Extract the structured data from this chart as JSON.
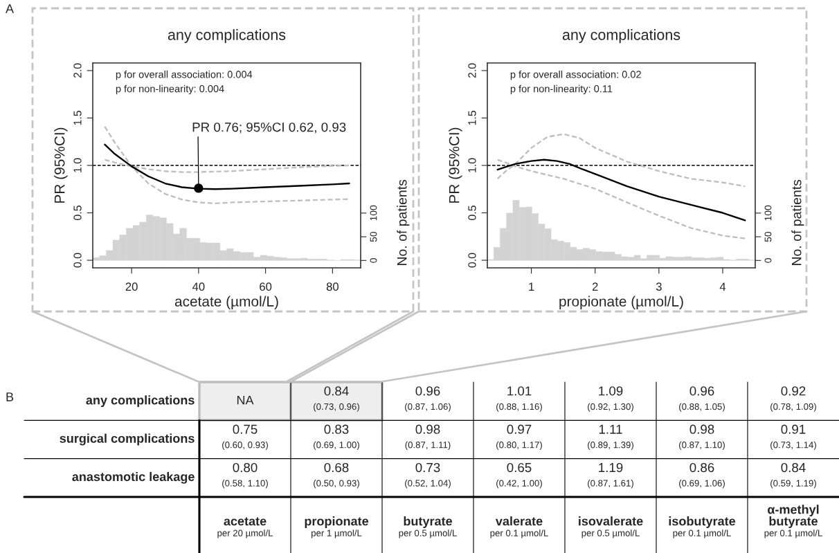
{
  "chart_data": [
    {
      "type": "line",
      "title": "any complications",
      "xlabel": "acetate (µmol/L)",
      "ylabel": "PR (95%CI)",
      "y2label": "No. of patients",
      "xlim": [
        8.4,
        88.4
      ],
      "xticks": [
        20,
        40,
        60,
        80
      ],
      "ylim": [
        -0.08,
        2.08
      ],
      "yticks": [
        {
          "value": 0,
          "label": "0.0"
        },
        {
          "value": 0.5,
          "label": "0.5"
        },
        {
          "value": 1,
          "label": "1.0"
        },
        {
          "value": 1.5,
          "label": "1.5"
        },
        {
          "value": 2,
          "label": "2.0"
        }
      ],
      "y2lim": [
        -15.6,
        416.7
      ],
      "y2ticks": [
        0,
        50,
        100
      ],
      "ref_lines": [
        {
          "axis": "y",
          "value": 1,
          "color": "#000000",
          "line_style": "dashed"
        }
      ],
      "annotations": [
        "p for overall association: 0.004",
        "p for non-linearity: 0.004",
        {
          "text": "PR 0.76; 95%CI 0.62, 0.93",
          "x": 40,
          "y": 0.76
        }
      ],
      "series": [
        {
          "type": "histogram",
          "axis": "y2",
          "color": "#d3d3d3",
          "bins": [
            8.4,
            10.4,
            12.4,
            14.4,
            16.4,
            18.4,
            20.4,
            22.4,
            24.4,
            26.4,
            28.4,
            30.4,
            32.4,
            34.4,
            36.4,
            38.4,
            40.4,
            42.4,
            44.4,
            46.4,
            48.4,
            50.4,
            52.4,
            54.4,
            56.4,
            58.4,
            60.4,
            62.4,
            64.4,
            66.4,
            68.4,
            70.4,
            72.4,
            74.4,
            76.4,
            78.4,
            80.4,
            82.4,
            84.4,
            86.4,
            88.4
          ],
          "values": [
            6,
            10,
            21,
            43,
            54,
            68,
            74,
            81,
            96,
            93,
            90,
            78,
            56,
            68,
            47,
            47,
            38,
            37,
            37,
            21,
            25,
            19,
            17,
            17,
            7,
            11,
            9,
            7,
            6,
            4,
            4,
            5,
            3,
            3,
            3,
            1,
            0,
            2,
            2,
            1
          ]
        },
        {
          "type": "line",
          "color": "#bfbfbf",
          "line_style": "dashed",
          "x": [
            12,
            15,
            20,
            25,
            30,
            35,
            40,
            45,
            50,
            60,
            70,
            80,
            85
          ],
          "values": [
            1.41,
            1.24,
            0.99,
            0.81,
            0.7,
            0.64,
            0.61,
            0.6,
            0.61,
            0.62,
            0.63,
            0.64,
            0.645
          ]
        },
        {
          "type": "line",
          "color": "#bfbfbf",
          "line_style": "dashed",
          "x": [
            12,
            15,
            20,
            25,
            30,
            35,
            40,
            50,
            60,
            70,
            80,
            85
          ],
          "values": [
            1.06,
            1.03,
            0.99,
            0.96,
            0.94,
            0.93,
            0.93,
            0.94,
            0.96,
            0.98,
            0.995,
            1.0
          ]
        },
        {
          "type": "line",
          "color": "#000000",
          "line_style": "solid",
          "x": [
            12,
            15,
            20,
            25,
            30,
            35,
            40,
            45,
            50,
            60,
            70,
            80,
            85
          ],
          "values": [
            1.22,
            1.12,
            0.99,
            0.885,
            0.81,
            0.77,
            0.755,
            0.75,
            0.755,
            0.77,
            0.785,
            0.8,
            0.81
          ]
        },
        {
          "type": "scatter",
          "color": "#000000",
          "marker": "circle",
          "x": [
            40
          ],
          "values": [
            0.76
          ]
        }
      ]
    },
    {
      "type": "line",
      "title": "any complications",
      "xlabel": "propionate (µmol/L)",
      "ylabel": "PR (95%CI)",
      "y2label": "No. of patients",
      "xlim": [
        0.31,
        4.51
      ],
      "xticks": [
        1,
        2,
        3,
        4
      ],
      "ylim": [
        -0.08,
        2.08
      ],
      "yticks": [
        {
          "value": 0,
          "label": "0.0"
        },
        {
          "value": 0.5,
          "label": "0.5"
        },
        {
          "value": 1,
          "label": "1.0"
        },
        {
          "value": 1.5,
          "label": "1.5"
        },
        {
          "value": 2,
          "label": "2.0"
        }
      ],
      "y2lim": [
        -15.6,
        416.7
      ],
      "y2ticks": [
        0,
        50,
        100
      ],
      "ref_lines": [
        {
          "axis": "y",
          "value": 1,
          "color": "#000000",
          "line_style": "dashed"
        }
      ],
      "annotations": [
        "p for overall association: 0.02",
        "p for non-linearity: 0.11"
      ],
      "series": [
        {
          "type": "histogram",
          "axis": "y2",
          "color": "#d3d3d3",
          "bins": [
            0.31,
            0.41,
            0.51,
            0.61,
            0.71,
            0.81,
            0.91,
            1.01,
            1.11,
            1.21,
            1.31,
            1.41,
            1.51,
            1.61,
            1.71,
            1.81,
            1.91,
            2.01,
            2.11,
            2.21,
            2.31,
            2.41,
            2.51,
            2.61,
            2.71,
            2.81,
            2.91,
            3.01,
            3.11,
            3.21,
            3.31,
            3.41,
            3.51,
            3.61,
            3.71,
            3.81,
            3.91,
            4.01,
            4.11,
            4.21,
            4.31,
            4.41,
            4.51
          ],
          "values": [
            2,
            28,
            68,
            100,
            127,
            112,
            113,
            99,
            77,
            67,
            44,
            41,
            38,
            28,
            23,
            26,
            23,
            19,
            18,
            18,
            13,
            8,
            7,
            11,
            4,
            11,
            11,
            5,
            8,
            7,
            7,
            8,
            6,
            6,
            5,
            6,
            7,
            2,
            1,
            3,
            3,
            1
          ]
        },
        {
          "type": "line",
          "color": "#bfbfbf",
          "line_style": "dashed",
          "x": [
            0.47,
            0.6,
            0.75,
            1.0,
            1.25,
            1.5,
            1.75,
            2.0,
            2.5,
            3.0,
            3.5,
            4.0,
            4.35
          ],
          "values": [
            0.86,
            0.94,
            1.015,
            1.185,
            1.3,
            1.33,
            1.29,
            1.185,
            1.04,
            0.94,
            0.86,
            0.82,
            0.78
          ]
        },
        {
          "type": "line",
          "color": "#bfbfbf",
          "line_style": "dashed",
          "x": [
            0.47,
            0.6,
            0.75,
            1.0,
            1.5,
            2.0,
            2.5,
            3.0,
            3.5,
            4.0,
            4.35
          ],
          "values": [
            1.06,
            1.03,
            0.99,
            0.94,
            0.86,
            0.755,
            0.61,
            0.47,
            0.34,
            0.26,
            0.23
          ]
        },
        {
          "type": "line",
          "color": "#000000",
          "line_style": "solid",
          "x": [
            0.47,
            0.6,
            0.75,
            1.0,
            1.2,
            1.4,
            1.6,
            1.8,
            2.0,
            2.5,
            3.0,
            3.5,
            4.0,
            4.35
          ],
          "values": [
            0.955,
            0.985,
            1.015,
            1.047,
            1.06,
            1.047,
            1.015,
            0.96,
            0.91,
            0.78,
            0.67,
            0.585,
            0.5,
            0.42
          ]
        }
      ]
    },
    {
      "type": "other",
      "annotations": [
        "A",
        "B"
      ],
      "categories": [
        "acetate\nper 20 µmol/L",
        "propionate\nper 1 µmol/L",
        "butyrate\nper 0.5 µmol/L",
        "valerate\nper 0.1 µmol/L",
        "isovalerate\nper 0.5 µmol/L",
        "isobutyrate\nper 0.1 µmol/L",
        "α-methyl\nbutyrate\nper 0.1 µmol/L"
      ],
      "y_categories": [
        "any complications",
        "surgical complications",
        "anastomotic leakage"
      ],
      "cell_labels": [
        [
          "NA",
          "0.84\n(0.73, 0.96)",
          "0.96\n(0.87, 1.06)",
          "1.01\n(0.88, 1.16)",
          "1.09\n(0.92, 1.30)",
          "0.96\n(0.88, 1.05)",
          "0.92\n(0.78, 1.09)"
        ],
        [
          "0.75\n(0.60, 0.93)",
          "0.83\n(0.69, 1.00)",
          "0.98\n(0.87, 1.11)",
          "0.97\n(0.80, 1.17)",
          "1.11\n(0.89, 1.39)",
          "0.98\n(0.87, 1.10)",
          "0.91\n(0.73, 1.14)"
        ],
        [
          "0.80\n(0.58, 1.10)",
          "0.68\n(0.50, 0.93)",
          "0.73\n(0.52, 1.04)",
          "0.65\n(0.42, 1.00)",
          "1.19\n(0.87, 1.61)",
          "0.86\n(0.69, 1.06)",
          "0.84\n(0.59, 1.19)"
        ]
      ]
    }
  ]
}
